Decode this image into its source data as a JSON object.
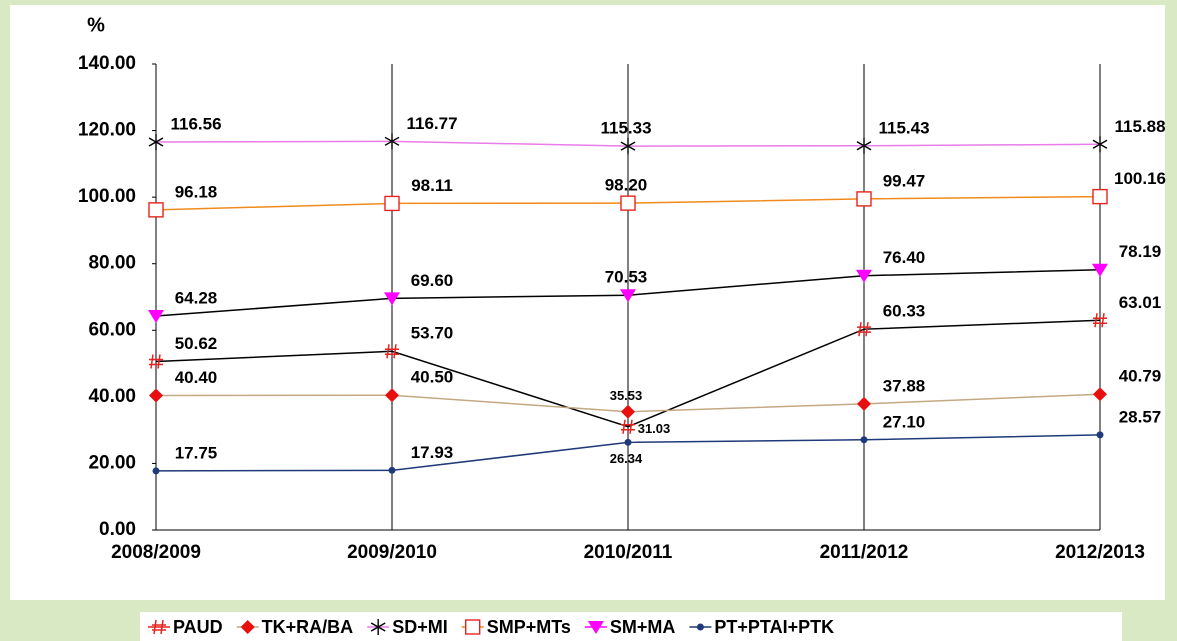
{
  "chart_data": {
    "type": "line",
    "y_label": "%",
    "categories": [
      "2008/2009",
      "2009/2010",
      "2010/2011",
      "2011/2012",
      "2012/2013"
    ],
    "ylim": [
      0,
      140
    ],
    "yticks": [
      {
        "value": 0,
        "label": "0.00"
      },
      {
        "value": 20,
        "label": "20.00"
      },
      {
        "value": 40,
        "label": "40.00"
      },
      {
        "value": 60,
        "label": "60.00"
      },
      {
        "value": 80,
        "label": "80.00"
      },
      {
        "value": 100,
        "label": "100.00"
      },
      {
        "value": 120,
        "label": "120.00"
      },
      {
        "value": 140,
        "label": "140.00"
      }
    ],
    "grid": "vertical",
    "legend": "bottom",
    "series": [
      {
        "name": "PAUD",
        "color": "#000000",
        "marker_color": "#e8231f",
        "marker": "hash",
        "values": [
          50.62,
          53.7,
          31.03,
          60.33,
          63.01
        ],
        "value_labels": [
          "50.62",
          "53.70",
          "31.03",
          "60.33",
          "63.01"
        ]
      },
      {
        "name": "TK+RA/BA",
        "color": "#c4a882",
        "marker_color": "#e8100f",
        "marker": "diamond",
        "values": [
          40.4,
          40.5,
          35.53,
          37.88,
          40.79
        ],
        "value_labels": [
          "40.40",
          "40.50",
          "35.53",
          "37.88",
          "40.79"
        ]
      },
      {
        "name": "SD+MI",
        "color": "#e87ce8",
        "marker_color": "#000000",
        "marker": "star",
        "values": [
          116.56,
          116.77,
          115.33,
          115.43,
          115.88
        ],
        "value_labels": [
          "116.56",
          "116.77",
          "115.33",
          "115.43",
          "115.88"
        ]
      },
      {
        "name": "SMP+MTs",
        "color": "#f08a1c",
        "marker_color": "#e8231f",
        "marker": "square",
        "values": [
          96.18,
          98.11,
          98.2,
          99.47,
          100.16
        ],
        "value_labels": [
          "96.18",
          "98.11",
          "98.20",
          "99.47",
          "100.16"
        ]
      },
      {
        "name": "SM+MA",
        "color": "#000000",
        "marker_color": "#ff00ff",
        "marker": "triangle",
        "values": [
          64.28,
          69.6,
          70.53,
          76.4,
          78.19
        ],
        "value_labels": [
          "64.28",
          "69.60",
          "70.53",
          "76.40",
          "78.19"
        ]
      },
      {
        "name": "PT+PTAI+PTK",
        "color": "#1f3a7a",
        "marker_color": "#1f3a7a",
        "marker": "dot",
        "values": [
          17.75,
          17.93,
          26.34,
          27.1,
          28.57
        ],
        "value_labels": [
          "17.75",
          "17.93",
          "26.34",
          "27.10",
          "28.57"
        ]
      }
    ]
  }
}
